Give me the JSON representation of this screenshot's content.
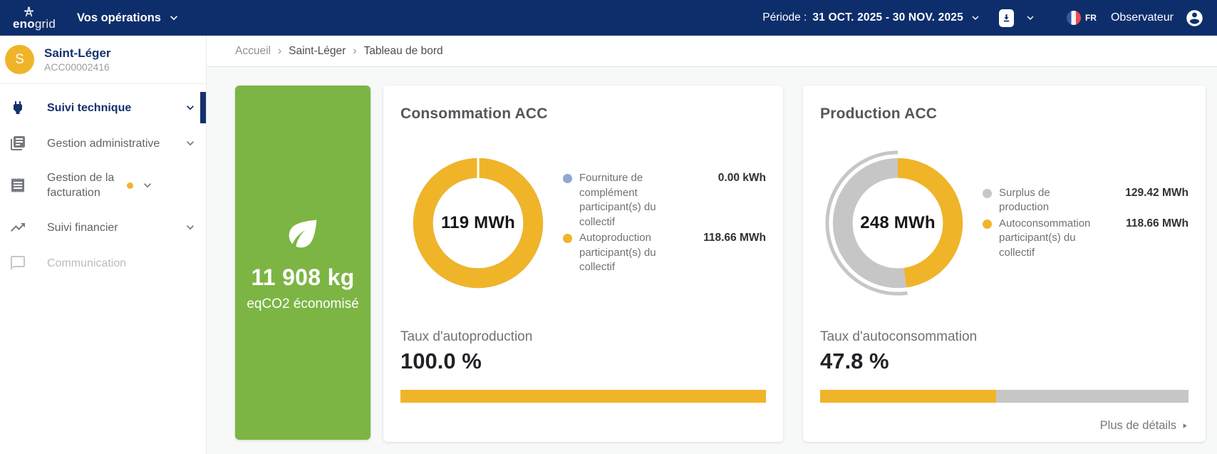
{
  "colors": {
    "brand_navy": "#0d2e6b",
    "accent_yellow": "#f0b429",
    "eco_green": "#7cb544",
    "segment_gray": "#c6c6c6",
    "segment_blue": "#8fa9ce"
  },
  "topbar": {
    "logo_bold": "eno",
    "logo_light": "grid",
    "nav_operations": "Vos opérations",
    "period_label": "Période :",
    "period_value": "31 OCT. 2025 - 30 NOV. 2025",
    "language": "FR",
    "user_role": "Observateur"
  },
  "sidebar": {
    "org_initial": "S",
    "org_name": "Saint-Léger",
    "org_code": "ACC00002416",
    "items": [
      {
        "label": "Suivi technique"
      },
      {
        "label": "Gestion administrative"
      },
      {
        "label": "Gestion de la facturation"
      },
      {
        "label": "Suivi financier"
      },
      {
        "label": "Communication"
      }
    ]
  },
  "breadcrumb": {
    "sep": "›",
    "items": [
      "Accueil",
      "Saint-Léger",
      "Tableau de bord"
    ]
  },
  "co2_card": {
    "value": "11 908 kg",
    "label": "eqCO2 économisé"
  },
  "chart_data": [
    {
      "type": "donut",
      "title": "Consommation ACC",
      "center_label": "119 MWh",
      "total_mwh": 118.66,
      "segments": [
        {
          "label": "Fourniture de complément participant(s) du collectif",
          "value": "0.00 kWh",
          "numeric_mwh": 0.0,
          "color": "#8fa9ce"
        },
        {
          "label": "Autoproduction participant(s) du collectif",
          "value": "118.66 MWh",
          "numeric_mwh": 118.66,
          "color": "#f0b429"
        }
      ],
      "rate_label": "Taux d'autoproduction",
      "rate_value": "100.0 %",
      "rate_percent": 100.0
    },
    {
      "type": "donut",
      "title": "Production ACC",
      "center_label": "248 MWh",
      "total_mwh": 248.08,
      "segments": [
        {
          "label": "Surplus de production",
          "value": "129.42 MWh",
          "numeric_mwh": 129.42,
          "color": "#c6c6c6"
        },
        {
          "label": "Autoconsommation participant(s) du collectif",
          "value": "118.66 MWh",
          "numeric_mwh": 118.66,
          "color": "#f0b429"
        }
      ],
      "rate_label": "Taux d'autoconsommation",
      "rate_value": "47.8 %",
      "rate_percent": 47.8,
      "details_link": "Plus de détails"
    }
  ]
}
